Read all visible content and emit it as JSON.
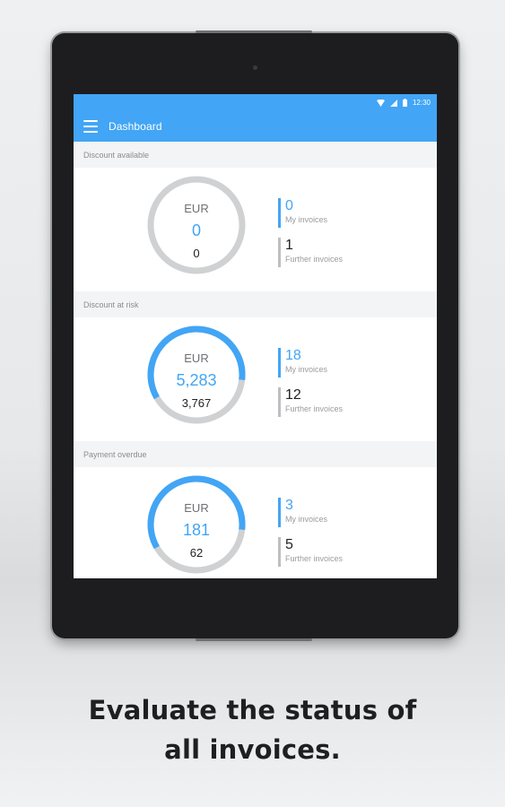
{
  "status_bar": {
    "time": "12:30",
    "icons": [
      "wifi-icon",
      "signal-icon",
      "battery-icon"
    ]
  },
  "app_bar": {
    "menu_icon": "hamburger-menu-icon",
    "title": "Dashboard"
  },
  "colors": {
    "accent": "#42a5f5",
    "ring_track": "#cfd1d3",
    "section_bg": "#f3f4f5"
  },
  "sections": [
    {
      "title": "Discount available",
      "currency": "EUR",
      "amount": "0",
      "sub_amount": "0",
      "ring_fraction": 0,
      "my_invoices_value": "0",
      "my_invoices_label": "My invoices",
      "further_invoices_value": "1",
      "further_invoices_label": "Further invoices"
    },
    {
      "title": "Discount at risk",
      "currency": "EUR",
      "amount": "5,283",
      "sub_amount": "3,767",
      "ring_fraction": 0.6,
      "my_invoices_value": "18",
      "my_invoices_label": "My invoices",
      "further_invoices_value": "12",
      "further_invoices_label": "Further invoices"
    },
    {
      "title": "Payment overdue",
      "currency": "EUR",
      "amount": "181",
      "sub_amount": "62",
      "ring_fraction": 0.6,
      "my_invoices_value": "3",
      "my_invoices_label": "My invoices",
      "further_invoices_value": "5",
      "further_invoices_label": "Further invoices"
    }
  ],
  "caption": {
    "line1": "Evaluate the status of",
    "line2": "all invoices."
  }
}
